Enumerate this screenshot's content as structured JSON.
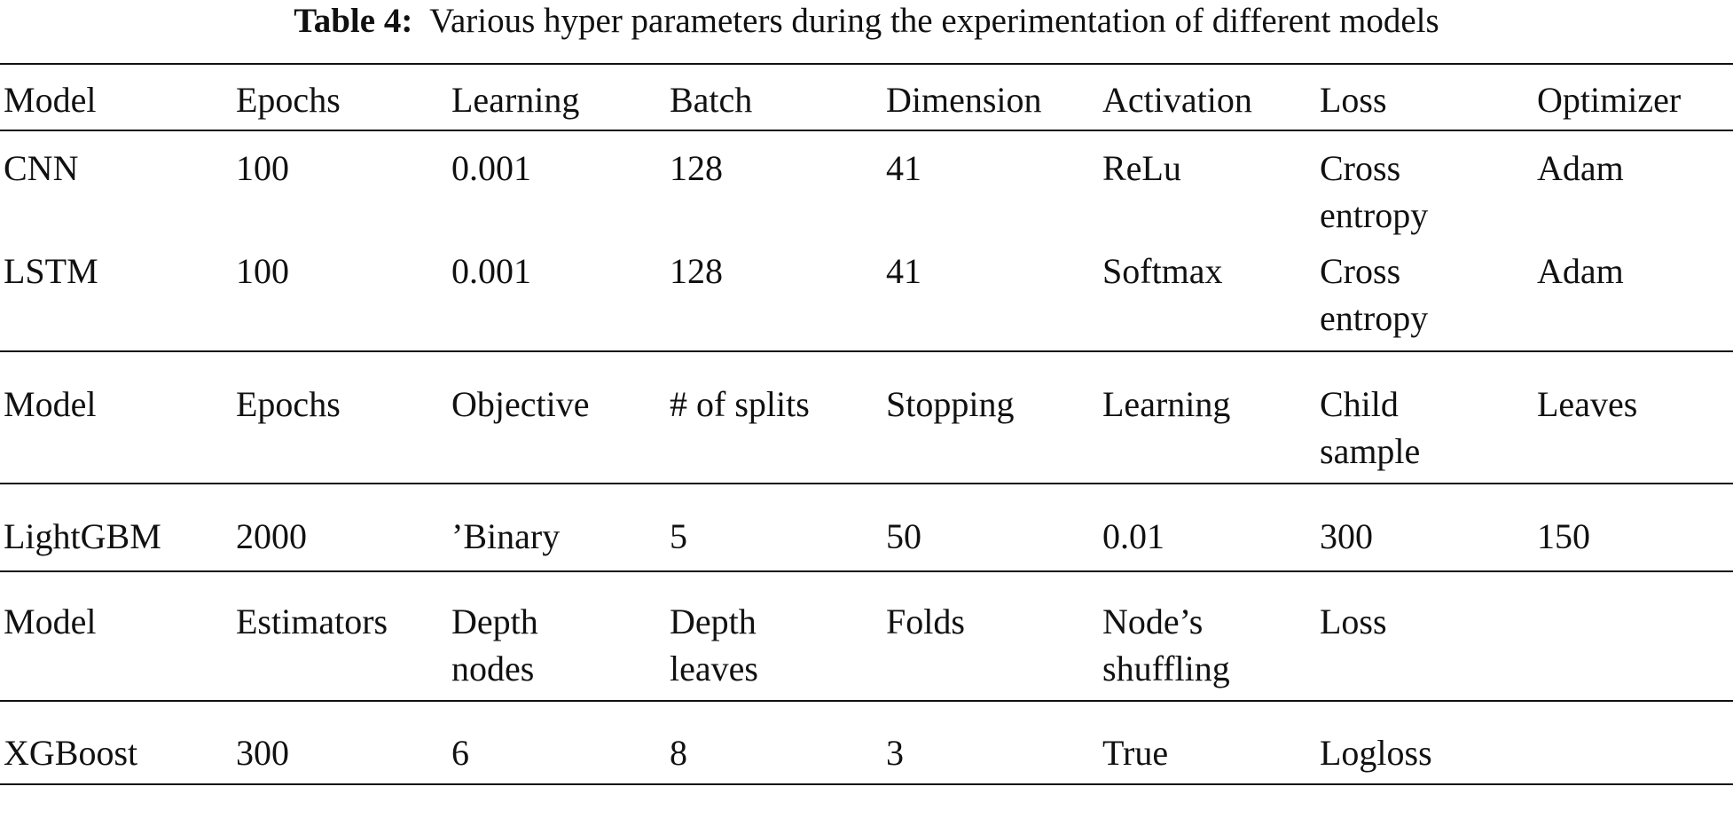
{
  "caption": {
    "label": "Table 4:",
    "text": "Various hyper parameters during the experimentation of different models"
  },
  "rows": [
    [
      "Model",
      "Epochs",
      "Learning",
      "Batch",
      "Dimension",
      "Activation",
      "Loss",
      "Optimizer"
    ],
    [
      "CNN",
      "100",
      "0.001",
      "128",
      "41",
      "ReLu",
      "Cross\nentropy",
      "Adam"
    ],
    [
      "LSTM",
      "100",
      "0.001",
      "128",
      "41",
      "Softmax",
      "Cross\nentropy",
      "Adam"
    ],
    [
      "Model",
      "Epochs",
      "Objective",
      "# of splits",
      "Stopping",
      "Learning",
      "Child\nsample",
      "Leaves"
    ],
    [
      "LightGBM",
      "2000",
      "’Binary",
      "5",
      "50",
      "0.01",
      "300",
      "150"
    ],
    [
      "Model",
      "Estimators",
      "Depth\nnodes",
      "Depth\nleaves",
      "Folds",
      "Node’s\nshuffling",
      "Loss",
      ""
    ],
    [
      "XGBoost",
      "300",
      "6",
      "8",
      "3",
      "True",
      "Logloss",
      ""
    ]
  ]
}
